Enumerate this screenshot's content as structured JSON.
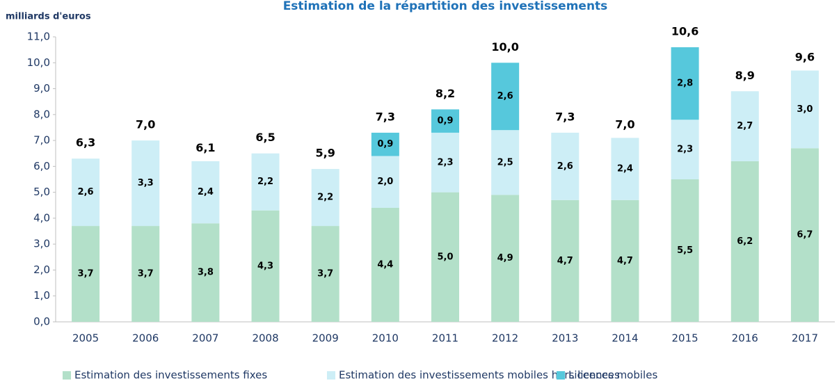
{
  "chart_data": {
    "type": "stacked_bar",
    "title": "Estimation de la répartition des investissements",
    "y_label": "milliards d'euros",
    "categories": [
      "2005",
      "2006",
      "2007",
      "2008",
      "2009",
      "2010",
      "2011",
      "2012",
      "2013",
      "2014",
      "2015",
      "2016",
      "2017"
    ],
    "series": [
      {
        "name": "Estimation des investissements fixes",
        "color": "#b3e0c9",
        "values": [
          3.7,
          3.7,
          3.8,
          4.3,
          3.7,
          4.4,
          5.0,
          4.9,
          4.7,
          4.7,
          5.5,
          6.2,
          6.7
        ],
        "value_labels": [
          "3,7",
          "3,7",
          "3,8",
          "4,3",
          "3,7",
          "4,4",
          "5,0",
          "4,9",
          "4,7",
          "4,7",
          "5,5",
          "6,2",
          "6,7"
        ]
      },
      {
        "name": "Estimation des investissements  mobiles hors licences",
        "color": "#cdeef6",
        "values": [
          2.6,
          3.3,
          2.4,
          2.2,
          2.2,
          2.0,
          2.3,
          2.5,
          2.6,
          2.4,
          2.3,
          2.7,
          3.0
        ],
        "value_labels": [
          "2,6",
          "3,3",
          "2,4",
          "2,2",
          "2,2",
          "2,0",
          "2,3",
          "2,5",
          "2,6",
          "2,4",
          "2,3",
          "2,7",
          "3,0"
        ]
      },
      {
        "name": "Licences mobiles",
        "color": "#56c8dc",
        "values": [
          null,
          null,
          null,
          null,
          null,
          0.9,
          0.9,
          2.6,
          null,
          null,
          2.8,
          null,
          null
        ],
        "value_labels": [
          null,
          null,
          null,
          null,
          null,
          "0,9",
          "0,9",
          "2,6",
          null,
          null,
          "2,8",
          null,
          null
        ]
      }
    ],
    "totals": [
      6.3,
      7.0,
      6.1,
      6.5,
      5.9,
      7.3,
      8.2,
      10.0,
      7.3,
      7.0,
      10.6,
      8.9,
      9.6
    ],
    "total_labels": [
      "6,3",
      "7,0",
      "6,1",
      "6,5",
      "5,9",
      "7,3",
      "8,2",
      "10,0",
      "7,3",
      "7,0",
      "10,6",
      "8,9",
      "9,6"
    ],
    "ylim": [
      0,
      11
    ],
    "yticks": [
      {
        "value": 0,
        "label": "0,0"
      },
      {
        "value": 1,
        "label": "1,0"
      },
      {
        "value": 2,
        "label": "2,0"
      },
      {
        "value": 3,
        "label": "3,0"
      },
      {
        "value": 4,
        "label": "4,0"
      },
      {
        "value": 5,
        "label": "5,0"
      },
      {
        "value": 6,
        "label": "6,0"
      },
      {
        "value": 7,
        "label": "7,0"
      },
      {
        "value": 8,
        "label": "8,0"
      },
      {
        "value": 9,
        "label": "9,0"
      },
      {
        "value": 10,
        "label": "10,0"
      },
      {
        "value": 11,
        "label": "11,0"
      }
    ],
    "grid": false,
    "legend": "bottom"
  }
}
